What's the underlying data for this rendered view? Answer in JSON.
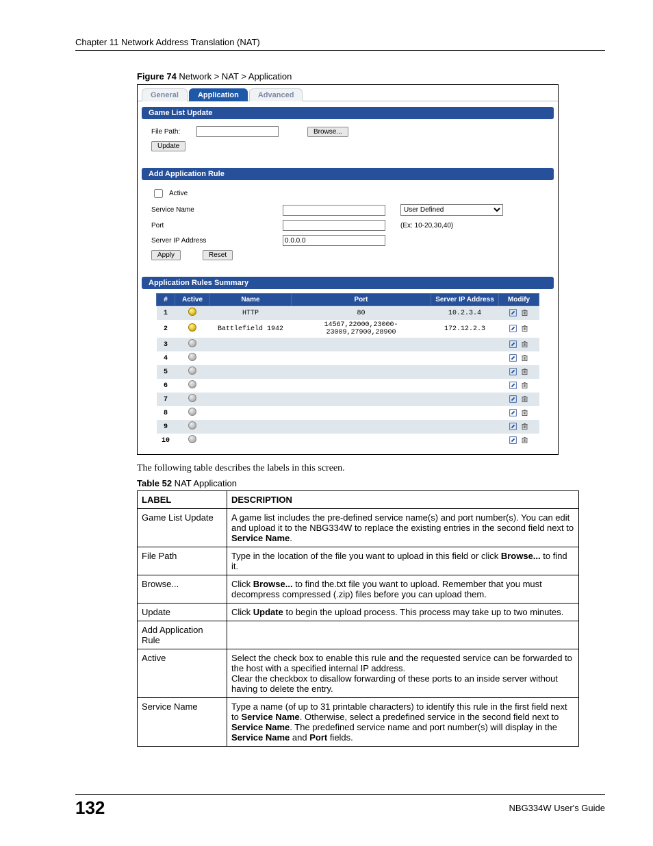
{
  "chapter_header": "Chapter 11 Network Address Translation (NAT)",
  "figure_caption_bold": "Figure 74",
  "figure_caption_rest": "   Network > NAT > Application",
  "screenshot": {
    "tabs": {
      "general": "General",
      "application": "Application",
      "advanced": "Advanced"
    },
    "sections": {
      "game_list_update": "Game List Update",
      "add_rule": "Add Application Rule",
      "summary": "Application Rules Summary"
    },
    "labels": {
      "file_path": "File Path:",
      "update": "Update",
      "browse": "Browse...",
      "active": "Active",
      "service_name": "Service Name",
      "port": "Port",
      "server_ip": "Server IP Address",
      "apply": "Apply",
      "reset": "Reset",
      "user_defined": "User Defined",
      "port_example": "(Ex: 10-20,30,40)"
    },
    "inputs": {
      "server_ip_value": "0.0.0.0"
    },
    "grid": {
      "headers": {
        "num": "#",
        "active": "Active",
        "name": "Name",
        "port": "Port",
        "server_ip": "Server IP Address",
        "modify": "Modify"
      },
      "rows": [
        {
          "n": "1",
          "active": "on",
          "name": "HTTP",
          "port": "80",
          "ip": "10.2.3.4"
        },
        {
          "n": "2",
          "active": "on",
          "name": "Battlefield 1942",
          "port": "14567,22000,23000-23009,27900,28900",
          "ip": "172.12.2.3"
        },
        {
          "n": "3",
          "active": "off",
          "name": "",
          "port": "",
          "ip": ""
        },
        {
          "n": "4",
          "active": "off",
          "name": "",
          "port": "",
          "ip": ""
        },
        {
          "n": "5",
          "active": "off",
          "name": "",
          "port": "",
          "ip": ""
        },
        {
          "n": "6",
          "active": "off",
          "name": "",
          "port": "",
          "ip": ""
        },
        {
          "n": "7",
          "active": "off",
          "name": "",
          "port": "",
          "ip": ""
        },
        {
          "n": "8",
          "active": "off",
          "name": "",
          "port": "",
          "ip": ""
        },
        {
          "n": "9",
          "active": "off",
          "name": "",
          "port": "",
          "ip": ""
        },
        {
          "n": "10",
          "active": "off",
          "name": "",
          "port": "",
          "ip": ""
        }
      ]
    }
  },
  "body_text": "The following table describes the labels in this screen.",
  "table_caption_bold": "Table 52",
  "table_caption_rest": "   NAT Application",
  "desc_table": {
    "header_label": "LABEL",
    "header_desc": "DESCRIPTION",
    "rows": [
      {
        "label": "Game List Update",
        "desc": "A game list includes the pre-defined service name(s) and port number(s). You can edit and upload it to the NBG334W to replace the existing entries in the second field next to <b>Service Name</b>."
      },
      {
        "label": "File Path",
        "desc": "Type in the location of the file you want to upload in this field or click <b>Browse...</b> to find it."
      },
      {
        "label": "Browse...",
        "desc": "Click <b>Browse...</b> to find the.txt file you want to upload. Remember that you must decompress compressed (.zip) files before you can upload them."
      },
      {
        "label": "Update",
        "desc": "Click <b>Update</b> to begin the upload process. This process may take up to two minutes."
      },
      {
        "label": "Add Application Rule",
        "desc": ""
      },
      {
        "label": "Active",
        "desc": "Select the check box to enable this rule and the requested service can be forwarded to the host with a specified internal IP address.<br>Clear the checkbox to disallow forwarding of these ports to an inside server without having to delete the entry."
      },
      {
        "label": "Service Name",
        "desc": "Type a name (of up to 31 printable characters) to identify this rule in the first field next to <b>Service Name</b>. Otherwise, select a predefined service in the second field next to <b>Service Name</b>. The predefined service name and port number(s) will display in the <b>Service Name</b> and <b>Port</b> fields."
      }
    ]
  },
  "footer": {
    "page_num": "132",
    "guide": "NBG334W User's Guide"
  }
}
